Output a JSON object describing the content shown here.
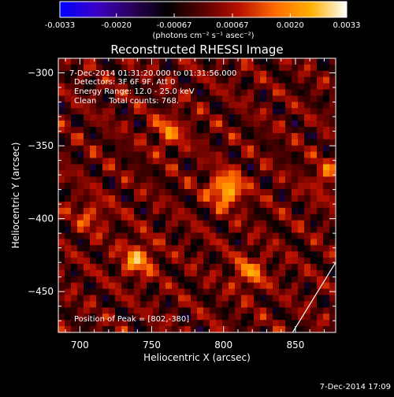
{
  "colorbar": {
    "ticks": [
      "-0.0033",
      "-0.0020",
      "-0.00067",
      "0.00067",
      "0.0020",
      "0.0033"
    ],
    "units": "(photons cm⁻² s⁻¹ asec⁻²)",
    "min": -0.0033,
    "max": 0.0033,
    "stops": [
      "#0000ff",
      "#3a00c8",
      "#2a005a",
      "#000000",
      "#5a0000",
      "#b81000",
      "#ff6a00",
      "#ffb000",
      "#ffffff"
    ]
  },
  "info": {
    "time_range": "7-Dec-2014 01:31:20.000 to 01:31:56.000",
    "detectors": "Detectors: 3F 6F 9F, Att 0",
    "energy": "Energy Range: 12.0 - 25.0 keV",
    "clean": "Clean     Total counts: 768.",
    "peak": "Position of Peak = [802,-380]"
  },
  "footer_date": "7-Dec-2014 17:09",
  "chart_data": {
    "type": "heatmap",
    "title": "Reconstructed RHESSI Image",
    "xlabel": "Heliocentric X (arcsec)",
    "ylabel": "Heliocentric Y (arcsec)",
    "xlim": [
      685,
      878
    ],
    "ylim": [
      -478,
      -290
    ],
    "xticks": [
      700,
      750,
      800,
      850
    ],
    "yticks": [
      -300,
      -350,
      -400,
      -450
    ],
    "xtick_labels": [
      "700",
      "750",
      "800",
      "850"
    ],
    "ytick_labels": [
      "−300",
      "−350",
      "−400",
      "−450"
    ],
    "peak": [
      802,
      -380
    ],
    "sources": [
      {
        "x": 802,
        "y": -380,
        "amp": 1.0
      },
      {
        "x": 740,
        "y": -428,
        "amp": 0.75
      },
      {
        "x": 818,
        "y": -437,
        "amp": 0.6
      },
      {
        "x": 762,
        "y": -340,
        "amp": 0.55
      },
      {
        "x": 872,
        "y": -372,
        "amp": 0.45
      },
      {
        "x": 708,
        "y": -398,
        "amp": 0.4
      }
    ],
    "limb_line": [
      [
        878,
        -430
      ],
      [
        848,
        -478
      ]
    ]
  }
}
